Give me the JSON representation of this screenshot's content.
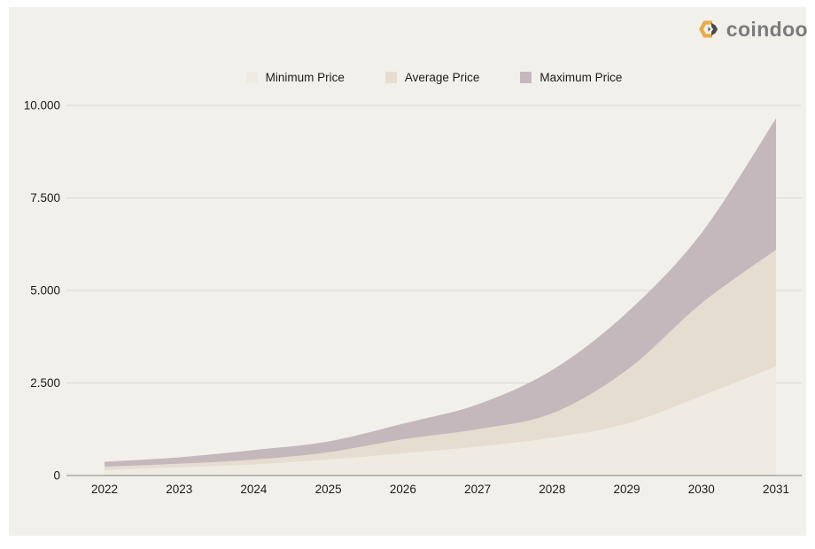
{
  "page": {
    "background": "#ffffff",
    "card_background": "#f2f0eb"
  },
  "logo": {
    "text": "coindoo",
    "icon": "coindoo-coin-icon",
    "text_color": "#7b7b7b",
    "gold": "#e5ac45",
    "dark": "#4a4a4e"
  },
  "legend": {
    "items": [
      {
        "label": "Minimum Price",
        "color": "#efebe2"
      },
      {
        "label": "Average Price",
        "color": "#e5ddd0"
      },
      {
        "label": "Maximum Price",
        "color": "#c4b8bc"
      }
    ],
    "position": "top"
  },
  "chart_data": {
    "type": "area",
    "title": "",
    "xlabel": "",
    "ylabel": "",
    "x": [
      2022,
      2023,
      2024,
      2025,
      2026,
      2027,
      2028,
      2029,
      2030,
      2031
    ],
    "series": [
      {
        "name": "Maximum Price",
        "color": "#c4b8bc",
        "values": [
          370,
          490,
          690,
          920,
          1400,
          1920,
          2850,
          4400,
          6550,
          9650
        ]
      },
      {
        "name": "Average Price",
        "color": "#e5ddd0",
        "values": [
          240,
          320,
          430,
          630,
          980,
          1250,
          1680,
          2850,
          4650,
          6100
        ]
      },
      {
        "name": "Minimum Price",
        "color": "#efebe2",
        "values": [
          150,
          220,
          300,
          430,
          600,
          780,
          1020,
          1400,
          2150,
          2950
        ]
      }
    ],
    "ylim": [
      0,
      10000
    ],
    "yticks": [
      0,
      2500,
      5000,
      7500,
      10000
    ],
    "ytick_labels": [
      "0",
      "2.500",
      "5.000",
      "7.500",
      "10.000"
    ],
    "xtick_labels": [
      "2022",
      "2023",
      "2024",
      "2025",
      "2026",
      "2027",
      "2028",
      "2029",
      "2030",
      "2031"
    ],
    "grid": true,
    "gridline_color": "#dbd9d5",
    "axis_line_color": "#a9a7a2",
    "legend_position": "top"
  }
}
